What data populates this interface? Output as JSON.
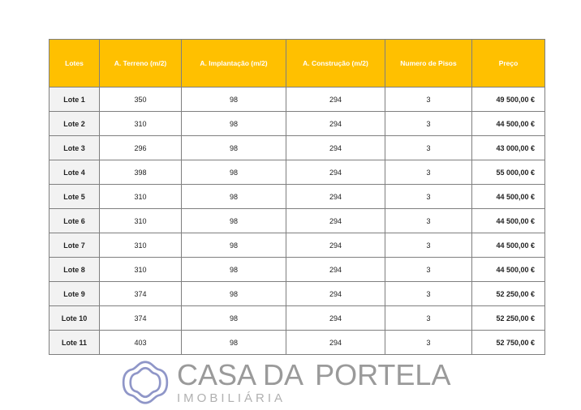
{
  "table": {
    "headers": [
      "Lotes",
      "A. Terreno (m/2)",
      "A. Implantação (m/2)",
      "A. Construção (m/2)",
      "Numero de Pisos",
      "Preço"
    ],
    "rows": [
      [
        "Lote 1",
        "350",
        "98",
        "294",
        "3",
        "49 500,00 €"
      ],
      [
        "Lote 2",
        "310",
        "98",
        "294",
        "3",
        "44 500,00 €"
      ],
      [
        "Lote 3",
        "296",
        "98",
        "294",
        "3",
        "43 000,00 €"
      ],
      [
        "Lote 4",
        "398",
        "98",
        "294",
        "3",
        "55 000,00 €"
      ],
      [
        "Lote 5",
        "310",
        "98",
        "294",
        "3",
        "44 500,00 €"
      ],
      [
        "Lote 6",
        "310",
        "98",
        "294",
        "3",
        "44 500,00 €"
      ],
      [
        "Lote 7",
        "310",
        "98",
        "294",
        "3",
        "44 500,00 €"
      ],
      [
        "Lote 8",
        "310",
        "98",
        "294",
        "3",
        "44 500,00 €"
      ],
      [
        "Lote 9",
        "374",
        "98",
        "294",
        "3",
        "52 250,00 €"
      ],
      [
        "Lote 10",
        "374",
        "98",
        "294",
        "3",
        "52 250,00 €"
      ],
      [
        "Lote 11",
        "403",
        "98",
        "294",
        "3",
        "52 750,00 €"
      ]
    ]
  },
  "watermark": {
    "line1": "CASA DA",
    "line2": "PORTELA",
    "line3": "IMOBILIÁRIA"
  },
  "colors": {
    "header": "#ffc000",
    "logo_mark": "#8f96c8",
    "logo_text": "#9a9a9a"
  }
}
